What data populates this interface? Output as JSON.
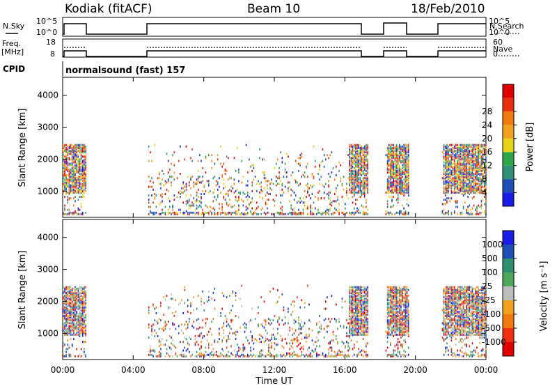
{
  "header": {
    "station": "Kodiak (fitACF)",
    "beam": "Beam 10",
    "date": "18/Feb/2010"
  },
  "panels": {
    "nsky_label": "N.Sky",
    "nsearch_label": "N.Search",
    "freq_label_1": "Freq.",
    "freq_label_2": "[MHz]",
    "nave_label": "Nave",
    "cpid_label": "CPID",
    "cpid_text": "normalsound (fast) 157",
    "nsky_ticks": [
      "10^5",
      "10^0"
    ],
    "nsearch_ticks": [
      "10^5",
      "10^0"
    ],
    "freq_ticks": [
      "18",
      "8"
    ],
    "nave_ticks": [
      "60",
      "0"
    ]
  },
  "colors": {
    "power_scale": [
      "#1b1be6",
      "#1f4fb4",
      "#2f8f7a",
      "#2fa54a",
      "#e8d21c",
      "#f0a020",
      "#f07a10",
      "#e83010",
      "#e00000"
    ],
    "velocity_scale": [
      "#e00000",
      "#f03010",
      "#f07a10",
      "#f0a020",
      "#bdbdbd",
      "#4fa65a",
      "#2e8f6f",
      "#1f4fb4",
      "#1b1be6"
    ]
  },
  "chart_data": [
    {
      "type": "heatmap",
      "name": "power",
      "ylabel": "Slant Range [km]",
      "ylim": [
        180,
        4560
      ],
      "yticks": [
        "1000",
        "2000",
        "3000",
        "4000"
      ],
      "xlim": [
        0,
        24
      ],
      "colorbar_label": "Power [dB]",
      "colorbar_ticks": [
        "4",
        "8",
        "12",
        "16",
        "20",
        "24",
        "28"
      ],
      "colorbar_range": [
        0,
        32
      ],
      "data_windows_hours": [
        [
          0,
          1.3
        ],
        [
          4.85,
          17.3
        ],
        [
          18.3,
          19.6
        ],
        [
          21.5,
          24
        ]
      ]
    },
    {
      "type": "heatmap",
      "name": "velocity",
      "ylabel": "Slant Range [km]",
      "ylim": [
        180,
        4560
      ],
      "yticks": [
        "1000",
        "2000",
        "3000",
        "4000"
      ],
      "xlim": [
        0,
        24
      ],
      "xlabel": "Time UT",
      "xticks": [
        "00:00",
        "04:00",
        "08:00",
        "12:00",
        "16:00",
        "20:00",
        "00:00"
      ],
      "colorbar_label": "Velocity [m s⁻¹]",
      "colorbar_ticks": [
        "1000",
        "500",
        "100",
        "25",
        "-25",
        "-100",
        "-500",
        "-1000"
      ],
      "data_windows_hours": [
        [
          0,
          1.3
        ],
        [
          4.85,
          17.3
        ],
        [
          18.3,
          19.6
        ],
        [
          21.5,
          24
        ]
      ]
    }
  ]
}
